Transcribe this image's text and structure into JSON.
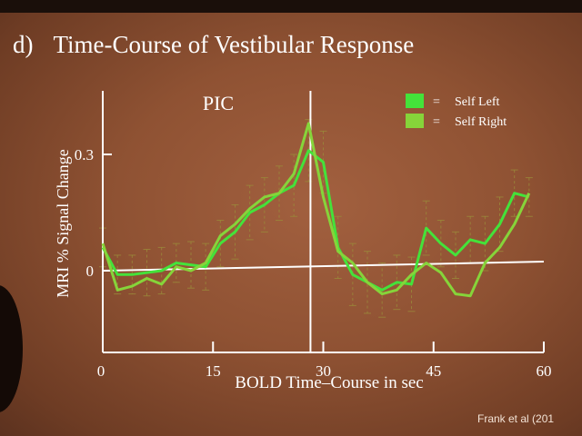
{
  "slide": {
    "title_letter": "d)",
    "title_text": "Time-Course of Vestibular Response",
    "citation": "Frank et al (201"
  },
  "colors": {
    "background": "#8f5233",
    "axes": "#ffffff",
    "self_left": "#44e23a",
    "self_right": "#86d43a",
    "error_bars": "#9a8a3a"
  },
  "chart_data": {
    "type": "line",
    "annotation": "PIC",
    "xlabel": "BOLD Time–Course in sec",
    "ylabel": "MRI % Signal Change",
    "xlim": [
      0,
      60
    ],
    "ylim": [
      -0.22,
      0.45
    ],
    "x_ticks": [
      0,
      15,
      30,
      45,
      60
    ],
    "y_ticks": [
      0,
      0.3
    ],
    "y_tick_labels": [
      "0",
      "0.3"
    ],
    "vline_x": 29,
    "grid": false,
    "legend_position": "top-right",
    "series": [
      {
        "name": "Self Left",
        "x": [
          0,
          2,
          4,
          6,
          8,
          10,
          12,
          14,
          16,
          18,
          20,
          22,
          24,
          26,
          28,
          30,
          32,
          34,
          36,
          38,
          40,
          42,
          44,
          46,
          48,
          50,
          52,
          54,
          56,
          58
        ],
        "values": [
          0.06,
          -0.01,
          -0.01,
          -0.005,
          0.0,
          0.02,
          0.015,
          0.01,
          0.07,
          0.1,
          0.15,
          0.17,
          0.2,
          0.22,
          0.31,
          0.28,
          0.06,
          -0.01,
          -0.03,
          -0.05,
          -0.03,
          -0.035,
          0.11,
          0.07,
          0.04,
          0.08,
          0.07,
          0.12,
          0.2,
          0.19
        ],
        "error": [
          0.05,
          0.05,
          0.05,
          0.06,
          0.06,
          0.05,
          0.06,
          0.06,
          0.06,
          0.07,
          0.07,
          0.07,
          0.07,
          0.08,
          0.08,
          0.08,
          0.08,
          0.08,
          0.08,
          0.07,
          0.07,
          0.07,
          0.07,
          0.06,
          0.06,
          0.06,
          0.07,
          0.07,
          0.06,
          0.05
        ]
      },
      {
        "name": "Self Right",
        "x": [
          0,
          2,
          4,
          6,
          8,
          10,
          12,
          14,
          16,
          18,
          20,
          22,
          24,
          26,
          28,
          30,
          32,
          34,
          36,
          38,
          40,
          42,
          44,
          46,
          48,
          50,
          52,
          54,
          56,
          58
        ],
        "values": [
          0.07,
          -0.05,
          -0.04,
          -0.02,
          -0.035,
          0.01,
          0.0,
          0.02,
          0.09,
          0.12,
          0.16,
          0.19,
          0.2,
          0.25,
          0.38,
          0.19,
          0.05,
          0.02,
          -0.03,
          -0.06,
          -0.05,
          -0.01,
          0.02,
          -0.005,
          -0.06,
          -0.065,
          0.02,
          0.06,
          0.12,
          0.2
        ]
      }
    ]
  }
}
